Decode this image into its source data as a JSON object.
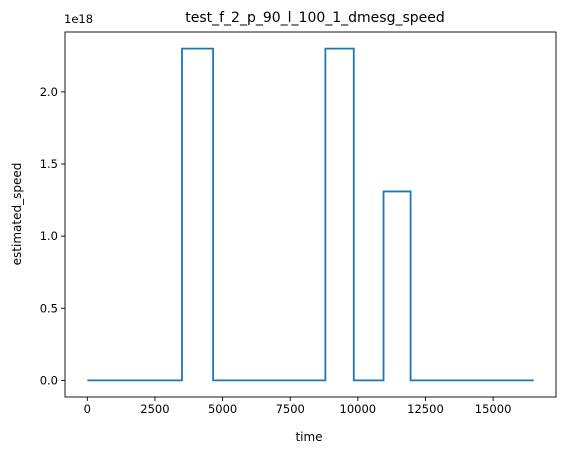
{
  "chart_data": {
    "type": "line",
    "title": "test_f_2_p_90_l_100_1_dmesg_speed",
    "xlabel": "time",
    "ylabel": "estimated_speed",
    "y_offset_label": "1e18",
    "xlim": [
      -825,
      17325
    ],
    "ylim": [
      -0.115,
      2.415
    ],
    "x_ticks": [
      0,
      2500,
      5000,
      7500,
      10000,
      12500,
      15000
    ],
    "x_tick_labels": [
      "0",
      "2500",
      "5000",
      "7500",
      "10000",
      "12500",
      "15000"
    ],
    "y_ticks": [
      0.0,
      0.5,
      1.0,
      1.5,
      2.0
    ],
    "y_tick_labels": [
      "0.0",
      "0.5",
      "1.0",
      "1.5",
      "2.0"
    ],
    "grid": false,
    "line_color": "#1f77b4",
    "series": [
      {
        "x": [
          0,
          3500,
          3500,
          4650,
          4650,
          8800,
          8800,
          9850,
          9850,
          10950,
          10950,
          11950,
          11950,
          16500
        ],
        "y": [
          0,
          0,
          2.3,
          2.3,
          0,
          0,
          2.3,
          2.3,
          0,
          0,
          1.31,
          1.31,
          0,
          0
        ]
      }
    ]
  }
}
